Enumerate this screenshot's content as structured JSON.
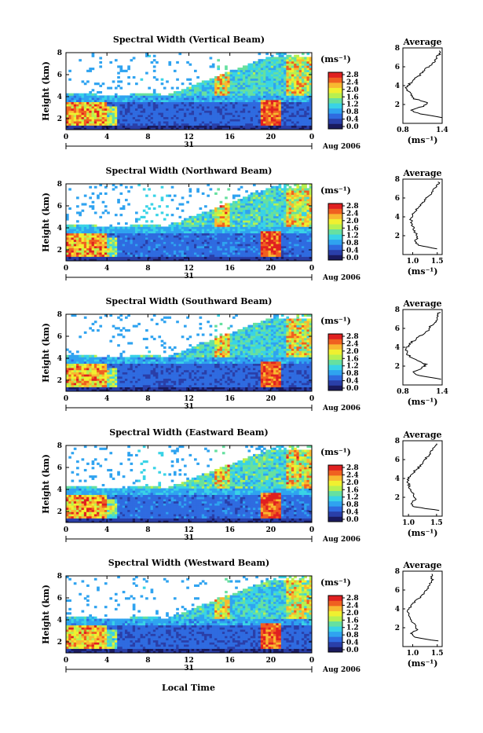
{
  "figure": {
    "shared_x_label": "Local Time",
    "date_label": "Aug 2006",
    "day_label": "31",
    "unit_label": "(ms⁻¹)",
    "avg_title": "Average"
  },
  "colorbar": {
    "tick_labels": [
      "0.0",
      "0.4",
      "0.8",
      "1.2",
      "1.6",
      "2.0",
      "2.4",
      "2.8"
    ],
    "colors": [
      "#1a1a5e",
      "#2a3fa8",
      "#2f6be0",
      "#2fa3f0",
      "#39d3e6",
      "#66e0a0",
      "#b8f050",
      "#f0f030",
      "#f8b830",
      "#f06020",
      "#e02020"
    ]
  },
  "chart_data": [
    {
      "type": "heatmap",
      "title": "Spectral Width (Vertical Beam)",
      "ylabel": "Height (km)",
      "ylim": [
        1,
        8
      ],
      "yticks": [
        "2",
        "4",
        "6",
        "8"
      ],
      "xticks": [
        "0",
        "4",
        "8",
        "12",
        "16",
        "20",
        "0"
      ],
      "avg": {
        "title": "Average",
        "xlabel": "(ms⁻¹)",
        "xticks": [
          "0.8",
          "1.4"
        ],
        "xlim": [
          0.8,
          1.4
        ],
        "heights": [
          0.6,
          1.0,
          1.4,
          1.8,
          2.2,
          2.6,
          3.0,
          3.4,
          3.8,
          4.2,
          4.6,
          5.0,
          5.4,
          5.8,
          6.2,
          6.6,
          7.0,
          7.4,
          7.8
        ],
        "values": [
          1.42,
          1.05,
          0.92,
          1.12,
          1.18,
          0.98,
          0.92,
          0.88,
          0.86,
          0.9,
          0.95,
          1.05,
          1.1,
          1.15,
          1.22,
          1.28,
          1.32,
          1.36,
          1.38
        ]
      }
    },
    {
      "type": "heatmap",
      "title": "Spectral Width (Northward Beam)",
      "ylabel": "Height (km)",
      "ylim": [
        1,
        8
      ],
      "yticks": [
        "2",
        "4",
        "6",
        "8"
      ],
      "xticks": [
        "0",
        "4",
        "8",
        "12",
        "16",
        "20",
        "0"
      ],
      "avg": {
        "title": "Average",
        "xlabel": "(ms⁻¹)",
        "xticks": [
          "1.0",
          "1.5"
        ],
        "xlim": [
          0.8,
          1.6
        ],
        "heights": [
          0.6,
          1.0,
          1.4,
          1.8,
          2.2,
          2.6,
          3.0,
          3.4,
          3.8,
          4.2,
          4.6,
          5.0,
          5.4,
          5.8,
          6.2,
          6.6,
          7.0,
          7.4,
          7.8
        ],
        "values": [
          1.5,
          1.12,
          1.05,
          1.1,
          1.08,
          1.02,
          1.0,
          0.98,
          0.96,
          1.0,
          1.05,
          1.12,
          1.18,
          1.25,
          1.32,
          1.4,
          1.45,
          1.5,
          1.55
        ]
      }
    },
    {
      "type": "heatmap",
      "title": "Spectral Width (Southward Beam)",
      "ylabel": "Height (km)",
      "ylim": [
        1,
        8
      ],
      "yticks": [
        "2",
        "4",
        "6",
        "8"
      ],
      "xticks": [
        "0",
        "4",
        "8",
        "12",
        "16",
        "20",
        "0"
      ],
      "avg": {
        "title": "Average",
        "xlabel": "(ms⁻¹)",
        "xticks": [
          "0.8",
          "1.4"
        ],
        "xlim": [
          0.8,
          1.4
        ],
        "heights": [
          0.6,
          1.0,
          1.4,
          1.8,
          2.2,
          2.6,
          3.0,
          3.4,
          3.8,
          4.2,
          4.6,
          5.0,
          5.4,
          5.8,
          6.2,
          6.6,
          7.0,
          7.4,
          7.8
        ],
        "values": [
          1.38,
          1.05,
          0.95,
          1.1,
          1.15,
          1.0,
          0.9,
          0.86,
          0.85,
          0.88,
          0.95,
          1.02,
          1.1,
          1.18,
          1.22,
          1.3,
          1.35,
          1.32,
          1.38
        ]
      }
    },
    {
      "type": "heatmap",
      "title": "Spectral Width (Eastward Beam)",
      "ylabel": "Height (km)",
      "ylim": [
        1,
        8
      ],
      "yticks": [
        "2",
        "4",
        "6",
        "8"
      ],
      "xticks": [
        "0",
        "4",
        "8",
        "12",
        "16",
        "20",
        "0"
      ],
      "avg": {
        "title": "Average",
        "xlabel": "(ms⁻¹)",
        "xticks": [
          "1.0",
          "1.5"
        ],
        "xlim": [
          0.9,
          1.6
        ],
        "heights": [
          0.6,
          1.0,
          1.4,
          1.8,
          2.2,
          2.6,
          3.0,
          3.4,
          3.8,
          4.2,
          4.6,
          5.0,
          5.4,
          5.8,
          6.2,
          6.6,
          7.0,
          7.4,
          7.8
        ],
        "values": [
          1.55,
          1.1,
          1.05,
          1.12,
          1.1,
          1.05,
          1.02,
          1.0,
          0.98,
          1.02,
          1.08,
          1.15,
          1.22,
          1.28,
          1.32,
          1.38,
          1.42,
          1.48,
          1.52
        ]
      }
    },
    {
      "type": "heatmap",
      "title": "Spectral Width (Westward Beam)",
      "ylabel": "Height (km)",
      "ylim": [
        1,
        8
      ],
      "yticks": [
        "2",
        "4",
        "6",
        "8"
      ],
      "xticks": [
        "0",
        "4",
        "8",
        "12",
        "16",
        "20",
        "0"
      ],
      "avg": {
        "title": "Average",
        "xlabel": "(ms⁻¹)",
        "xticks": [
          "1.0",
          "1.5"
        ],
        "xlim": [
          0.8,
          1.6
        ],
        "heights": [
          0.6,
          1.0,
          1.4,
          1.8,
          2.2,
          2.6,
          3.0,
          3.4,
          3.8,
          4.2,
          4.6,
          5.0,
          5.4,
          5.8,
          6.2,
          6.6,
          7.0,
          7.4,
          7.8
        ],
        "values": [
          1.5,
          1.05,
          0.98,
          1.08,
          1.05,
          1.0,
          0.95,
          0.92,
          0.9,
          0.95,
          1.02,
          1.1,
          1.18,
          1.25,
          1.3,
          1.35,
          1.4,
          1.38,
          1.42
        ]
      }
    }
  ]
}
